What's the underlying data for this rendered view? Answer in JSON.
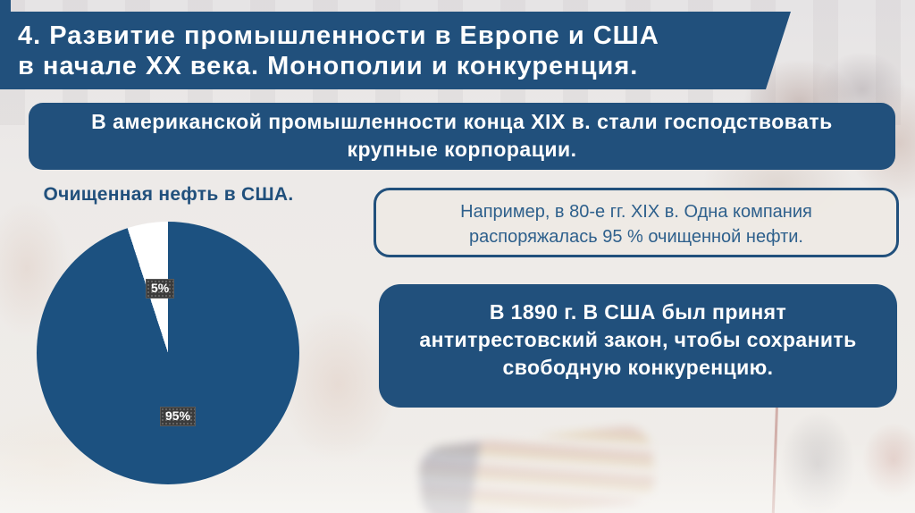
{
  "slide": {
    "title": {
      "lines": [
        "4. Развитие промышленности в Европе и США",
        "в начале XX века. Монополии и конкуренция."
      ]
    },
    "intro_box": {
      "lines": [
        "В американской промышленности конца XIX в. стали господствовать",
        "крупные корпорации."
      ]
    },
    "pie_section": {
      "title": "Очищенная нефть в США."
    },
    "example_box": {
      "lines": [
        "Например, в 80-е гг. XIX в. Одна компания",
        "распоряжалась 95 % очищенной нефти."
      ]
    },
    "law_box": {
      "lines": [
        "В 1890 г. В США был принят",
        "антитрестовский закон, чтобы сохранить",
        "свободную конкуренцию."
      ]
    },
    "colors": {
      "primary_blue": "#21507C",
      "pie_blue": "#1C5180",
      "pie_slice_white": "#FFFFFF",
      "data_label_bg": "#3B3B3B",
      "panel_bg": "#EDE9E3",
      "panel_text": "#2E608C",
      "background_wash": "#EDEAE8"
    }
  },
  "chart_data": {
    "type": "pie",
    "title": "Очищенная нефть в США.",
    "slices": [
      {
        "label": "95%",
        "value": 95,
        "color": "#1C5180"
      },
      {
        "label": "5%",
        "value": 5,
        "color": "#FFFFFF"
      }
    ],
    "start_angle_deg": 0,
    "direction": "clockwise",
    "legend_position": "none",
    "data_label_style": {
      "background": "#3B3B3B",
      "text_color": "#FFFFFF"
    }
  }
}
